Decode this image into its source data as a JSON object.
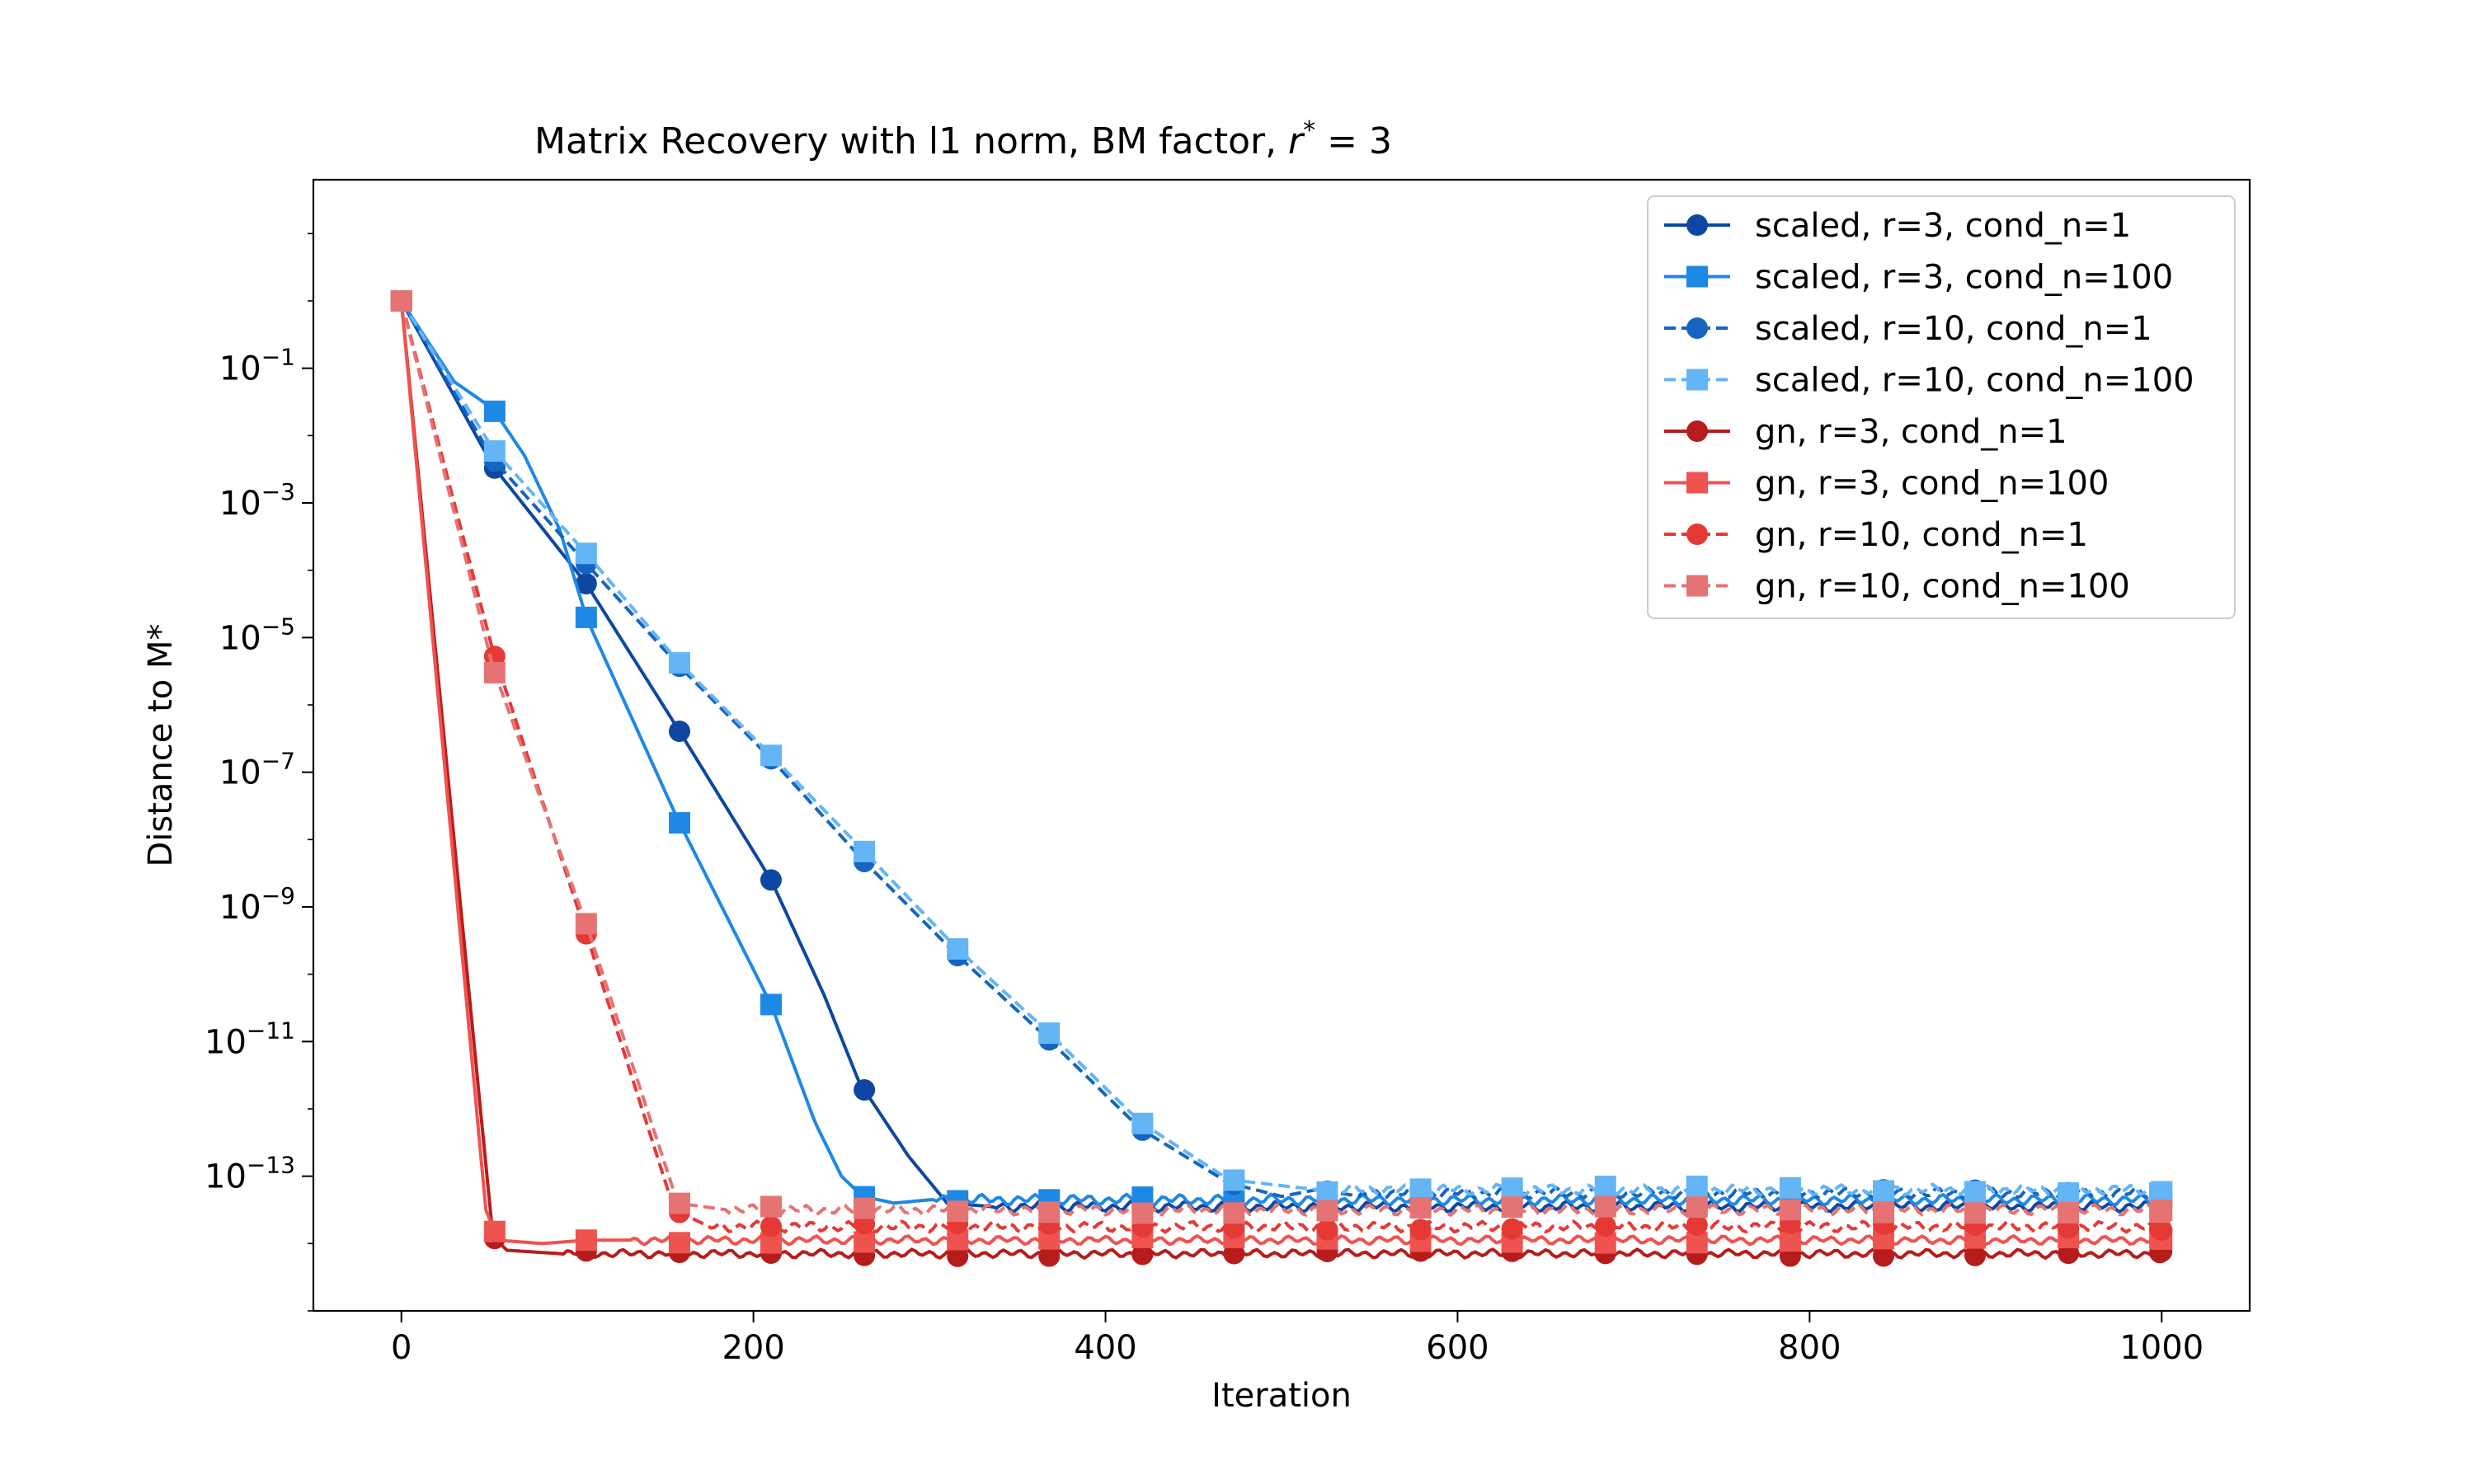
{
  "chart_data": {
    "type": "line",
    "title": "Matrix Recovery with l1 norm, BM factor, ",
    "title_math": {
      "var": "r",
      "sup": "*",
      "rest": " = 3"
    },
    "xlabel": "Iteration",
    "ylabel": "Distance to M*",
    "xlim": [
      -50,
      1050
    ],
    "ylim_log10": [
      -15.0,
      1.8
    ],
    "yscale": "log",
    "grid": false,
    "legend_position": "top-right",
    "x_ticks": [
      {
        "value": 0,
        "label": "0"
      },
      {
        "value": 200,
        "label": "200"
      },
      {
        "value": 400,
        "label": "400"
      },
      {
        "value": 600,
        "label": "600"
      },
      {
        "value": 800,
        "label": "800"
      },
      {
        "value": 1000,
        "label": "1000"
      }
    ],
    "y_ticks": [
      {
        "exp": -1,
        "base": "10",
        "sup": "−1"
      },
      {
        "exp": -3,
        "base": "10",
        "sup": "−3"
      },
      {
        "exp": -5,
        "base": "10",
        "sup": "−5"
      },
      {
        "exp": -7,
        "base": "10",
        "sup": "−7"
      },
      {
        "exp": -9,
        "base": "10",
        "sup": "−9"
      },
      {
        "exp": -11,
        "base": "10",
        "sup": "−11"
      },
      {
        "exp": -13,
        "base": "10",
        "sup": "−13"
      }
    ],
    "series": [
      {
        "name": "scaled, r=3, cond_n=1",
        "color": "#0d47a1",
        "dash": "solid",
        "marker": "circle",
        "offset": 0,
        "lead": 2,
        "jitter": 0.05,
        "floor": -13.45,
        "points": [
          [
            0,
            0.0
          ],
          [
            52,
            -2.45
          ],
          [
            105,
            -4.2
          ],
          [
            157,
            -6.35
          ],
          [
            210,
            -8.6
          ],
          [
            240,
            -10.3
          ],
          [
            260,
            -11.6
          ],
          [
            288,
            -12.7
          ],
          [
            310,
            -13.4
          ],
          [
            335,
            -13.45
          ]
        ]
      },
      {
        "name": "scaled, r=3, cond_n=100",
        "color": "#1e88e5",
        "dash": "solid",
        "marker": "square",
        "offset": 0,
        "lead": 3,
        "jitter": 0.05,
        "floor": -13.35,
        "points": [
          [
            0,
            0.0
          ],
          [
            30,
            -1.2
          ],
          [
            52,
            -1.6
          ],
          [
            70,
            -2.3
          ],
          [
            90,
            -3.4
          ],
          [
            105,
            -4.7
          ],
          [
            157,
            -7.7
          ],
          [
            210,
            -10.45
          ],
          [
            235,
            -12.2
          ],
          [
            250,
            -13.0
          ],
          [
            262,
            -13.3
          ],
          [
            280,
            -13.4
          ],
          [
            300,
            -13.35
          ]
        ]
      },
      {
        "name": "scaled, r=10, cond_n=1",
        "color": "#1565c0",
        "dash": "dashed",
        "marker": "circle",
        "offset": 0,
        "lead": 1,
        "jitter": 0.05,
        "floor": -13.25,
        "points": [
          [
            0,
            0.0
          ],
          [
            52,
            -2.35
          ],
          [
            105,
            -3.9
          ],
          [
            157,
            -5.4
          ],
          [
            210,
            -6.8
          ],
          [
            262,
            -8.3
          ],
          [
            315,
            -9.7
          ],
          [
            367,
            -10.95
          ],
          [
            420,
            -12.3
          ],
          [
            470,
            -13.1
          ],
          [
            500,
            -13.3
          ],
          [
            520,
            -13.2
          ],
          [
            545,
            -13.3
          ]
        ]
      },
      {
        "name": "scaled, r=10, cond_n=100",
        "color": "#64b5f6",
        "dash": "dashed",
        "marker": "square",
        "offset": 0,
        "lead": 4,
        "jitter": 0.05,
        "floor": -13.2,
        "points": [
          [
            0,
            0.0
          ],
          [
            52,
            -2.2
          ],
          [
            105,
            -3.75
          ],
          [
            157,
            -5.35
          ],
          [
            210,
            -6.75
          ],
          [
            262,
            -8.15
          ],
          [
            315,
            -9.6
          ],
          [
            367,
            -10.85
          ],
          [
            420,
            -12.2
          ],
          [
            470,
            -13.05
          ],
          [
            520,
            -13.2
          ]
        ]
      },
      {
        "name": "gn, r=3, cond_n=1",
        "color": "#b71c1c",
        "dash": "solid",
        "marker": "circle",
        "offset": 0,
        "lead": 1,
        "jitter": 0.04,
        "floor": -14.15,
        "points": [
          [
            0,
            0.0
          ],
          [
            52,
            -13.9
          ],
          [
            60,
            -14.1
          ],
          [
            90,
            -14.15
          ]
        ]
      },
      {
        "name": "gn, r=3, cond_n=100",
        "color": "#ef5350",
        "dash": "solid",
        "marker": "square",
        "offset": 0,
        "lead": 3,
        "jitter": 0.04,
        "floor": -13.95,
        "points": [
          [
            0,
            0.0
          ],
          [
            48,
            -13.5
          ],
          [
            55,
            -13.95
          ],
          [
            80,
            -14.0
          ],
          [
            105,
            -13.95
          ],
          [
            130,
            -13.95
          ]
        ]
      },
      {
        "name": "gn, r=10, cond_n=1",
        "color": "#e53935",
        "dash": "dashed",
        "marker": "circle",
        "offset": 0,
        "lead": 2,
        "jitter": 0.05,
        "floor": -13.75,
        "points": [
          [
            0,
            0.0
          ],
          [
            52,
            -5.2
          ],
          [
            105,
            -9.4
          ],
          [
            155,
            -13.5
          ],
          [
            175,
            -13.75
          ]
        ]
      },
      {
        "name": "gn, r=10, cond_n=100",
        "color": "#e57373",
        "dash": "dashed",
        "marker": "square",
        "offset": 0,
        "lead": 4,
        "jitter": 0.05,
        "floor": -13.5,
        "points": [
          [
            0,
            0.0
          ],
          [
            52,
            -5.45
          ],
          [
            105,
            -9.25
          ],
          [
            157,
            -13.4
          ],
          [
            185,
            -13.5
          ]
        ]
      }
    ]
  }
}
